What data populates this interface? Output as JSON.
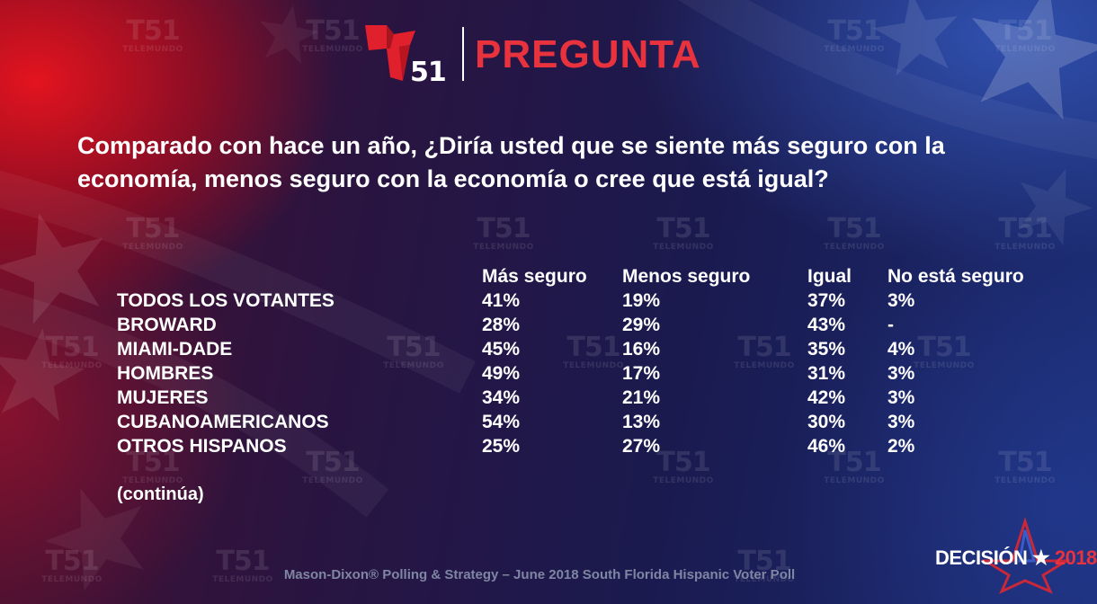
{
  "header": {
    "channel_number": "51",
    "title": "PREGUNTA"
  },
  "watermark": {
    "number": "51",
    "name": "TELEMUNDO"
  },
  "question": "Comparado con hace un año, ¿Diría usted que se siente más seguro con la economía, menos seguro con la economía o cree que está igual?",
  "chart_data": {
    "type": "table",
    "columns": [
      "Más seguro",
      "Menos seguro",
      "Igual",
      "No está seguro"
    ],
    "rows": [
      {
        "label": "TODOS LOS VOTANTES",
        "values": [
          "41%",
          "19%",
          "37%",
          "3%"
        ]
      },
      {
        "label": "BROWARD",
        "values": [
          "28%",
          "29%",
          "43%",
          "-"
        ]
      },
      {
        "label": "MIAMI-DADE",
        "values": [
          "45%",
          "16%",
          "35%",
          "4%"
        ]
      },
      {
        "label": "HOMBRES",
        "values": [
          "49%",
          "17%",
          "31%",
          "3%"
        ]
      },
      {
        "label": "MUJERES",
        "values": [
          "34%",
          "21%",
          "42%",
          "3%"
        ]
      },
      {
        "label": "CUBANOAMERICANOS",
        "values": [
          "54%",
          "13%",
          "30%",
          "3%"
        ]
      },
      {
        "label": "OTROS HISPANOS",
        "values": [
          "25%",
          "27%",
          "46%",
          "2%"
        ]
      }
    ]
  },
  "note": "(continúa)",
  "footer": "Mason-Dixon® Polling & Strategy – June 2018 South Florida Hispanic Voter Poll",
  "brand": {
    "decision_text": "DECISIÓN",
    "decision_year": "2018"
  },
  "colors": {
    "accent_red": "#e8323e",
    "footer_gray": "#7f86a3"
  }
}
